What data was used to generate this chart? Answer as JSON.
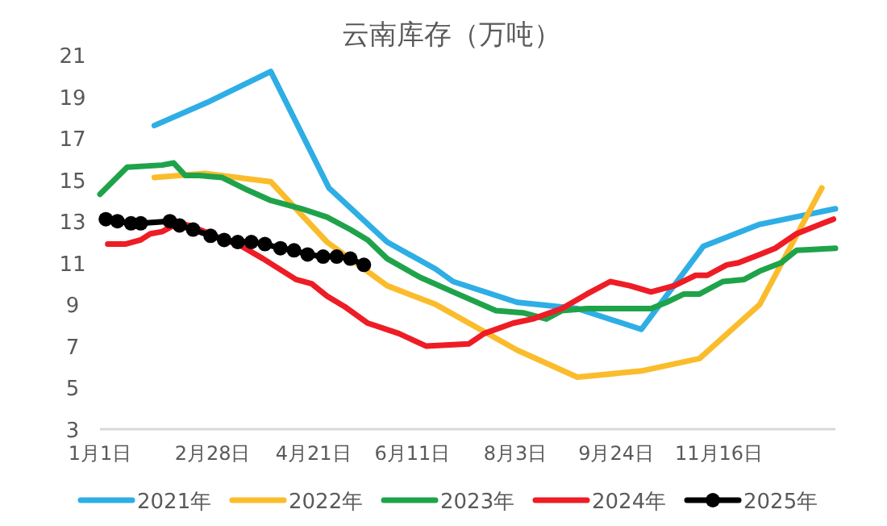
{
  "chart_data": {
    "type": "line",
    "title": "云南库存（万吨）",
    "xlim": [
      "2023-01-01",
      "2024-01-15"
    ],
    "xticks": [
      {
        "value": "2023-01-01",
        "label": "1月1日"
      },
      {
        "value": "2023-02-28",
        "label": "2月28日"
      },
      {
        "value": "2023-04-21",
        "label": "4月21日"
      },
      {
        "value": "2023-06-11",
        "label": "6月11日"
      },
      {
        "value": "2023-08-03",
        "label": "8月3日"
      },
      {
        "value": "2023-09-24",
        "label": "9月24日"
      },
      {
        "value": "2023-11-16",
        "label": "11月16日"
      }
    ],
    "ylim": [
      3,
      21
    ],
    "yticks": [
      3,
      5,
      7,
      9,
      11,
      13,
      15,
      17,
      19,
      21
    ],
    "grid": false,
    "legend": "bottom",
    "line_style": "solid",
    "series": [
      {
        "name": "2021年",
        "color": "#2eaee5",
        "marker": "none",
        "x": [
          "2023-01-29",
          "2023-02-25",
          "2023-03-30",
          "2023-04-29",
          "2023-05-29",
          "2023-06-23",
          "2023-07-02",
          "2023-08-04",
          "2023-09-04",
          "2023-10-07",
          "2023-11-08",
          "2023-12-07",
          "2024-01-15"
        ],
        "values": [
          17.6,
          18.7,
          20.2,
          14.6,
          12.0,
          10.7,
          10.1,
          9.1,
          8.8,
          7.8,
          11.8,
          12.85,
          13.6
        ]
      },
      {
        "name": "2022年",
        "color": "#fbbc2c",
        "marker": "none",
        "x": [
          "2023-01-29",
          "2023-02-24",
          "2023-03-30",
          "2023-04-28",
          "2023-05-29",
          "2023-06-23",
          "2023-08-04",
          "2023-09-04",
          "2023-10-07",
          "2023-11-06",
          "2023-12-07",
          "2024-01-08"
        ],
        "values": [
          15.1,
          15.3,
          14.9,
          12.0,
          9.9,
          9.0,
          6.8,
          5.5,
          5.8,
          6.4,
          9.0,
          14.6
        ]
      },
      {
        "name": "2023年",
        "color": "#1fa34a",
        "marker": "none",
        "x": [
          "2023-01-01",
          "2023-01-15",
          "2023-02-02",
          "2023-02-08",
          "2023-02-14",
          "2023-02-21",
          "2023-03-05",
          "2023-03-18",
          "2023-03-30",
          "2023-04-15",
          "2023-04-28",
          "2023-05-10",
          "2023-05-19",
          "2023-05-29",
          "2023-06-15",
          "2023-07-02",
          "2023-07-24",
          "2023-08-07",
          "2023-08-19",
          "2023-08-27",
          "2023-09-09",
          "2023-10-12",
          "2023-10-20",
          "2023-10-29",
          "2023-11-06",
          "2023-11-18",
          "2023-11-29",
          "2023-12-07",
          "2023-12-18",
          "2023-12-26",
          "2024-01-15"
        ],
        "values": [
          14.3,
          15.6,
          15.7,
          15.8,
          15.2,
          15.2,
          15.1,
          14.5,
          14.0,
          13.6,
          13.2,
          12.6,
          12.1,
          11.2,
          10.3,
          9.6,
          8.7,
          8.6,
          8.3,
          8.7,
          8.8,
          8.8,
          9.1,
          9.5,
          9.5,
          10.1,
          10.2,
          10.6,
          11.0,
          11.6,
          11.7
        ]
      },
      {
        "name": "2024年",
        "color": "#ee1c25",
        "marker": "none",
        "x": [
          "2023-01-05",
          "2023-01-14",
          "2023-01-22",
          "2023-01-27",
          "2023-02-02",
          "2023-02-10",
          "2023-02-16",
          "2023-03-01",
          "2023-03-15",
          "2023-03-26",
          "2023-04-12",
          "2023-04-20",
          "2023-04-28",
          "2023-05-07",
          "2023-05-19",
          "2023-06-04",
          "2023-06-18",
          "2023-07-10",
          "2023-07-18",
          "2023-08-02",
          "2023-08-12",
          "2023-08-27",
          "2023-09-09",
          "2023-09-21",
          "2023-10-01",
          "2023-10-12",
          "2023-10-24",
          "2023-11-04",
          "2023-11-10",
          "2023-11-20",
          "2023-11-26",
          "2023-12-07",
          "2023-12-15",
          "2023-12-26",
          "2024-01-14"
        ],
        "values": [
          11.9,
          11.9,
          12.1,
          12.4,
          12.5,
          12.9,
          12.8,
          12.3,
          11.8,
          11.2,
          10.2,
          10.0,
          9.4,
          8.9,
          8.1,
          7.6,
          7.0,
          7.1,
          7.6,
          8.1,
          8.3,
          8.8,
          9.5,
          10.1,
          9.9,
          9.6,
          9.9,
          10.4,
          10.4,
          10.9,
          11.0,
          11.4,
          11.7,
          12.4,
          13.1
        ]
      },
      {
        "name": "2025年",
        "color": "#000000",
        "marker": "circle",
        "x": [
          "2023-01-04",
          "2023-01-10",
          "2023-01-17",
          "2023-01-22",
          "2023-02-06",
          "2023-02-11",
          "2023-02-18",
          "2023-02-27",
          "2023-03-06",
          "2023-03-13",
          "2023-03-20",
          "2023-03-27",
          "2023-04-04",
          "2023-04-11",
          "2023-04-18",
          "2023-04-26",
          "2023-05-03",
          "2023-05-10",
          "2023-05-17"
        ],
        "values": [
          13.1,
          13.0,
          12.9,
          12.9,
          13.0,
          12.8,
          12.6,
          12.3,
          12.1,
          12.0,
          12.0,
          11.9,
          11.7,
          11.6,
          11.4,
          11.3,
          11.3,
          11.2,
          10.9
        ]
      }
    ]
  }
}
